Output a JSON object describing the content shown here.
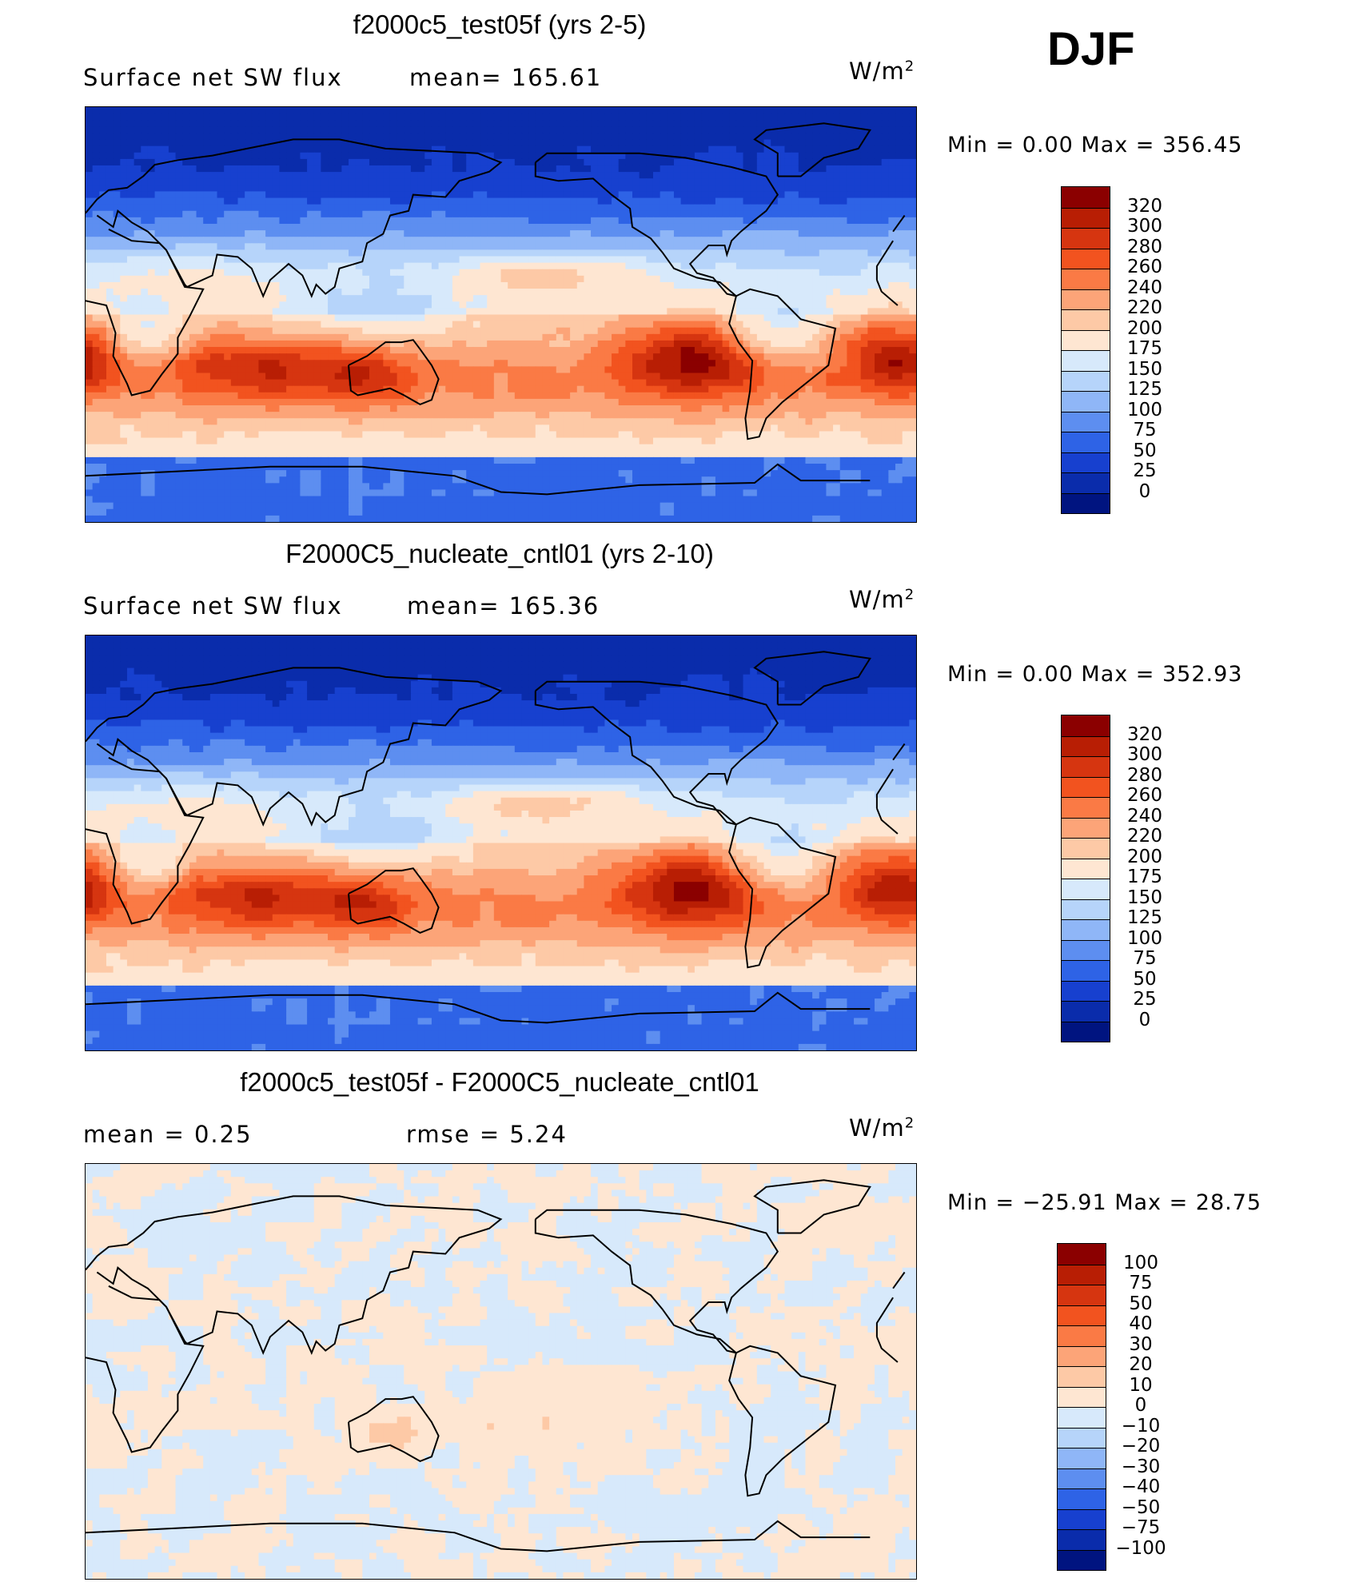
{
  "season": "DJF",
  "chart_data": [
    {
      "type": "heatmap",
      "title": "f2000c5_test05f (yrs 2-5)",
      "subtitle_left": "Surface net SW flux",
      "subtitle_mean": "mean=  165.61",
      "units_base": "W/m",
      "units_exp": "2",
      "minmax": "Min  =     0.00  Max  =  356.45",
      "mean": 165.61,
      "min": 0.0,
      "max": 356.45,
      "colorbar_labels": [
        "320",
        "300",
        "280",
        "260",
        "240",
        "220",
        "200",
        "175",
        "150",
        "125",
        "100",
        "75",
        "50",
        "25",
        "0"
      ],
      "colorbar_colors": [
        "#8b0000",
        "#b81e04",
        "#d63510",
        "#f2531f",
        "#fa7a45",
        "#fca478",
        "#fdc9a6",
        "#fee6d2",
        "#d7e9fb",
        "#b6d4fa",
        "#8fb6f7",
        "#5d8ef0",
        "#2e63e6",
        "#1740cf",
        "#0a2cab",
        "#001480"
      ]
    },
    {
      "type": "heatmap",
      "title": "F2000C5_nucleate_cntl01 (yrs 2-10)",
      "subtitle_left": "Surface net SW flux",
      "subtitle_mean": "mean=  165.36",
      "units_base": "W/m",
      "units_exp": "2",
      "minmax": "Min  =     0.00  Max  =  352.93",
      "mean": 165.36,
      "min": 0.0,
      "max": 352.93,
      "colorbar_labels": [
        "320",
        "300",
        "280",
        "260",
        "240",
        "220",
        "200",
        "175",
        "150",
        "125",
        "100",
        "75",
        "50",
        "25",
        "0"
      ],
      "colorbar_colors": [
        "#8b0000",
        "#b81e04",
        "#d63510",
        "#f2531f",
        "#fa7a45",
        "#fca478",
        "#fdc9a6",
        "#fee6d2",
        "#d7e9fb",
        "#b6d4fa",
        "#8fb6f7",
        "#5d8ef0",
        "#2e63e6",
        "#1740cf",
        "#0a2cab",
        "#001480"
      ]
    },
    {
      "type": "heatmap",
      "title": "f2000c5_test05f - F2000C5_nucleate_cntl01",
      "subtitle_left": "mean  =     0.25",
      "subtitle_mean": "rmse  =     5.24",
      "units_base": "W/m",
      "units_exp": "2",
      "minmax": "Min  = −25.91  Max  =    28.75",
      "mean": 0.25,
      "rmse": 5.24,
      "min": -25.91,
      "max": 28.75,
      "colorbar_labels": [
        "100",
        "75",
        "50",
        "40",
        "30",
        "20",
        "10",
        "0",
        "−10",
        "−20",
        "−30",
        "−40",
        "−50",
        "−75",
        "−100"
      ],
      "colorbar_colors": [
        "#8b0000",
        "#b81e04",
        "#d63510",
        "#f2531f",
        "#fa7a45",
        "#fca478",
        "#fdc9a6",
        "#fee6d2",
        "#d7e9fb",
        "#b6d4fa",
        "#8fb6f7",
        "#5d8ef0",
        "#2e63e6",
        "#1740cf",
        "#0a2cab",
        "#001480"
      ]
    }
  ]
}
